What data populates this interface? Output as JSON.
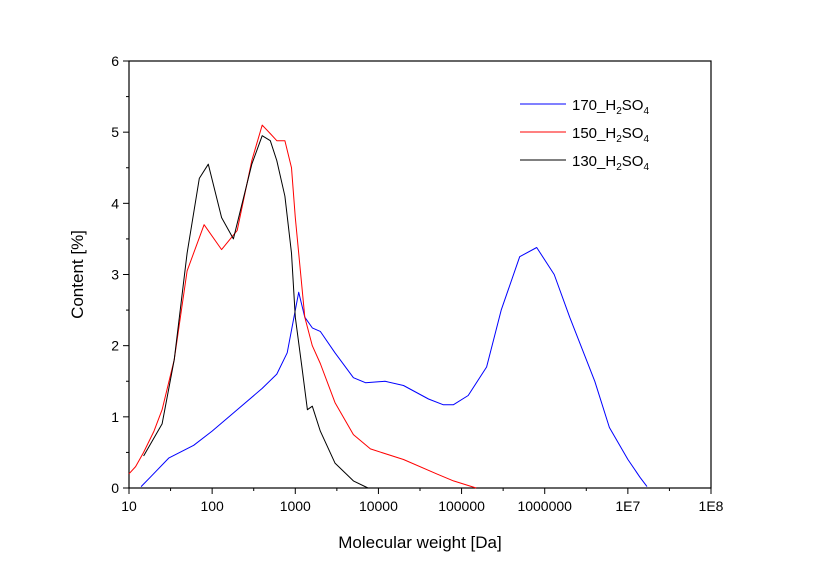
{
  "chart_data": {
    "type": "line",
    "xlabel": "Molecular weight [Da]",
    "ylabel": "Content [%]",
    "xscale": "log",
    "xlim": [
      10,
      100000000
    ],
    "ylim": [
      0,
      6
    ],
    "x_ticks": [
      10,
      100,
      1000,
      10000,
      100000,
      1000000,
      10000000,
      100000000
    ],
    "x_tick_labels": [
      "10",
      "100",
      "1000",
      "10000",
      "100000",
      "1000000",
      "1E7",
      "1E8"
    ],
    "y_ticks": [
      0,
      1,
      2,
      3,
      4,
      5,
      6
    ],
    "y_tick_labels": [
      "0",
      "1",
      "2",
      "3",
      "4",
      "5",
      "6"
    ],
    "grid": false,
    "legend_position": "top-right",
    "series": [
      {
        "name": "170_H2SO4",
        "legend_parts": [
          "170_H",
          "2",
          "SO",
          "4"
        ],
        "color": "#0000ff",
        "points": [
          [
            14,
            0.02
          ],
          [
            18,
            0.15
          ],
          [
            30,
            0.42
          ],
          [
            60,
            0.6
          ],
          [
            100,
            0.8
          ],
          [
            200,
            1.1
          ],
          [
            400,
            1.4
          ],
          [
            600,
            1.6
          ],
          [
            800,
            1.9
          ],
          [
            1000,
            2.5
          ],
          [
            1100,
            2.75
          ],
          [
            1300,
            2.4
          ],
          [
            1600,
            2.25
          ],
          [
            2000,
            2.2
          ],
          [
            3000,
            1.9
          ],
          [
            5000,
            1.55
          ],
          [
            7000,
            1.48
          ],
          [
            12000,
            1.5
          ],
          [
            20000,
            1.44
          ],
          [
            40000,
            1.25
          ],
          [
            60000,
            1.17
          ],
          [
            80000,
            1.17
          ],
          [
            120000,
            1.3
          ],
          [
            200000,
            1.7
          ],
          [
            300000,
            2.5
          ],
          [
            500000,
            3.25
          ],
          [
            800000,
            3.38
          ],
          [
            1300000,
            3.0
          ],
          [
            2000000,
            2.4
          ],
          [
            4000000,
            1.5
          ],
          [
            6000000,
            0.85
          ],
          [
            10000000,
            0.4
          ],
          [
            14000000,
            0.15
          ],
          [
            17000000,
            0.02
          ]
        ]
      },
      {
        "name": "150_H2SO4",
        "legend_parts": [
          "150_H",
          "2",
          "SO",
          "4"
        ],
        "color": "#ff0000",
        "points": [
          [
            10,
            0.2
          ],
          [
            12,
            0.3
          ],
          [
            15,
            0.5
          ],
          [
            20,
            0.8
          ],
          [
            25,
            1.1
          ],
          [
            35,
            1.8
          ],
          [
            50,
            3.05
          ],
          [
            80,
            3.7
          ],
          [
            130,
            3.35
          ],
          [
            200,
            3.62
          ],
          [
            300,
            4.6
          ],
          [
            400,
            5.1
          ],
          [
            500,
            4.98
          ],
          [
            600,
            4.88
          ],
          [
            750,
            4.88
          ],
          [
            900,
            4.5
          ],
          [
            1000,
            3.8
          ],
          [
            1300,
            2.4
          ],
          [
            1600,
            2.0
          ],
          [
            2000,
            1.75
          ],
          [
            3000,
            1.2
          ],
          [
            5000,
            0.75
          ],
          [
            8000,
            0.55
          ],
          [
            20000,
            0.4
          ],
          [
            50000,
            0.2
          ],
          [
            80000,
            0.1
          ],
          [
            150000,
            0.0
          ]
        ]
      },
      {
        "name": "130_H2SO4",
        "legend_parts": [
          "130_H",
          "2",
          "SO",
          "4"
        ],
        "color": "#000000",
        "points": [
          [
            15,
            0.45
          ],
          [
            25,
            0.9
          ],
          [
            35,
            1.8
          ],
          [
            50,
            3.3
          ],
          [
            70,
            4.35
          ],
          [
            90,
            4.55
          ],
          [
            130,
            3.8
          ],
          [
            180,
            3.5
          ],
          [
            300,
            4.55
          ],
          [
            400,
            4.95
          ],
          [
            500,
            4.88
          ],
          [
            600,
            4.6
          ],
          [
            750,
            4.1
          ],
          [
            900,
            3.3
          ],
          [
            1000,
            2.4
          ],
          [
            1200,
            1.7
          ],
          [
            1400,
            1.1
          ],
          [
            1600,
            1.15
          ],
          [
            2000,
            0.8
          ],
          [
            3000,
            0.35
          ],
          [
            5000,
            0.1
          ],
          [
            7500,
            0.0
          ]
        ]
      }
    ]
  }
}
